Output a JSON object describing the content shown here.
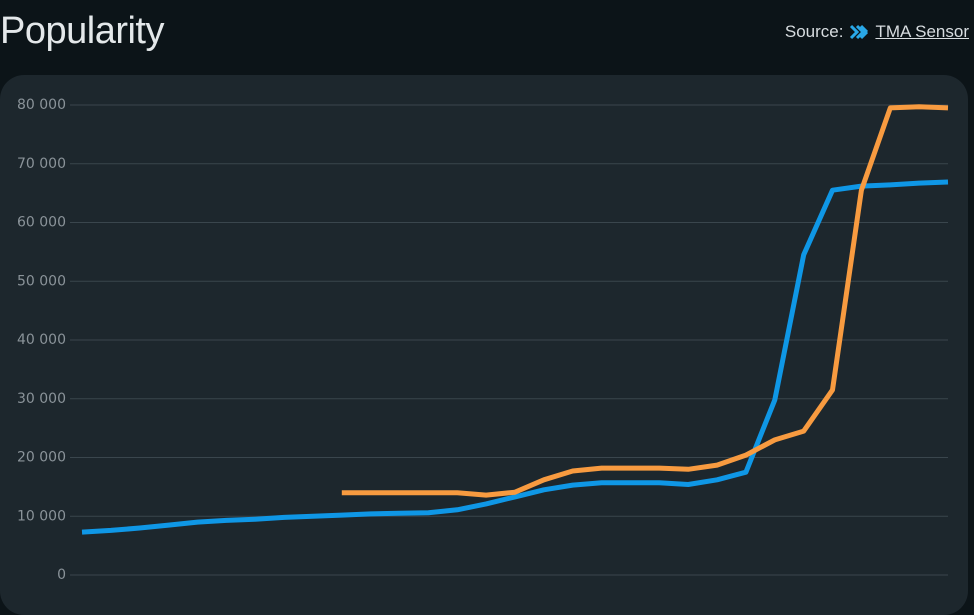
{
  "chart_data": {
    "type": "line",
    "title": "Popularity",
    "source_label": "Source:",
    "source_name": "TMA Sensor",
    "categories": [
      null,
      null,
      null,
      null,
      null,
      null,
      null,
      null,
      null,
      null,
      null,
      null,
      null,
      null,
      null,
      null,
      null,
      null,
      null,
      null,
      null,
      null,
      null,
      null,
      null,
      null,
      null,
      null,
      null,
      null,
      null
    ],
    "series": [
      {
        "color": "#0f97e6",
        "values": [
          7300,
          7600,
          8000,
          8500,
          9000,
          9300,
          9500,
          9800,
          10000,
          10200,
          10400,
          10500,
          10600,
          11100,
          12100,
          13300,
          14500,
          15300,
          15700,
          15700,
          15700,
          15400,
          16200,
          17500,
          29800,
          54500,
          65500,
          66200,
          66400,
          66700,
          66900
        ]
      },
      {
        "color": "#f89b40",
        "values": [
          null,
          null,
          null,
          null,
          null,
          null,
          null,
          null,
          null,
          14000,
          14000,
          14000,
          14000,
          14000,
          13600,
          14100,
          16200,
          17700,
          18200,
          18200,
          18200,
          18000,
          18700,
          20400,
          23000,
          24500,
          31500,
          65500,
          79500,
          79700,
          79500
        ]
      }
    ],
    "ylim": [
      0,
      80000
    ],
    "yticks": [
      0,
      {
        "value": 10000,
        "label": "10 000"
      },
      {
        "value": 20000,
        "label": "20 000"
      },
      {
        "value": 30000,
        "label": "30 000"
      },
      {
        "value": 40000,
        "label": "40 000"
      },
      {
        "value": 50000,
        "label": "50 000"
      },
      {
        "value": 60000,
        "label": "60 000"
      },
      {
        "value": 70000,
        "label": "70 000"
      },
      {
        "value": 80000,
        "label": "80 000"
      }
    ],
    "grid": true
  }
}
